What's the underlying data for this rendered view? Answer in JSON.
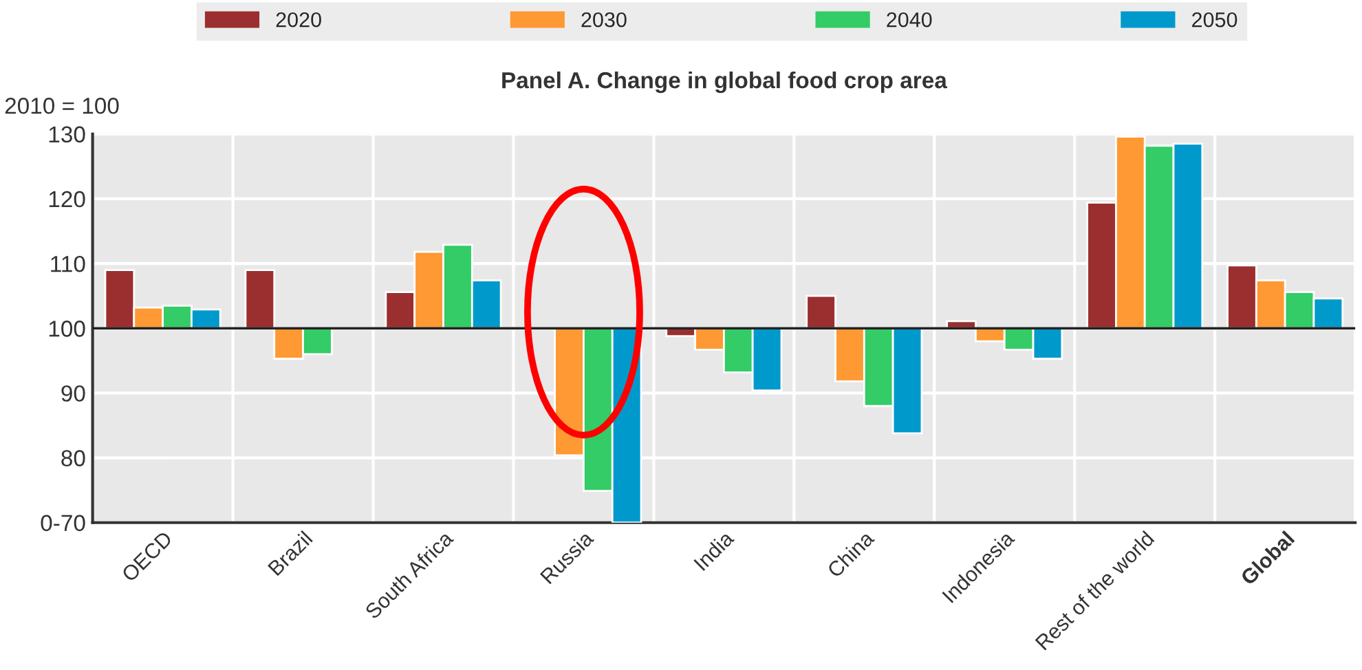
{
  "chart_data": {
    "type": "bar",
    "title": "Panel A. Change in global food crop area",
    "ylabel": "2010 = 100",
    "categories": [
      "OECD",
      "Brazil",
      "South Africa",
      "Russia",
      "India",
      "China",
      "Indonesia",
      "Rest of the world",
      "Global"
    ],
    "series": [
      {
        "name": "2020",
        "color": "#9b2f2f",
        "base": [
          100,
          100,
          100,
          null,
          100,
          100,
          100,
          100,
          100
        ],
        "values": [
          9.0,
          9.0,
          5.6,
          null,
          -1.2,
          5.0,
          1.1,
          19.4,
          9.7
        ]
      },
      {
        "name": "2030",
        "color": "#ff9933",
        "base": [
          100,
          100,
          100,
          100,
          100,
          100,
          100,
          100,
          100
        ],
        "values": [
          3.2,
          -4.7,
          11.8,
          -19.6,
          -3.3,
          -8.2,
          -2.0,
          29.6,
          7.4
        ]
      },
      {
        "name": "2040",
        "color": "#33cc66",
        "base": [
          100,
          100,
          100,
          100,
          100,
          100,
          100,
          100,
          100
        ],
        "values": [
          3.5,
          -4.0,
          12.9,
          -25.1,
          -6.8,
          -12.0,
          -3.3,
          28.2,
          5.6
        ]
      },
      {
        "name": "2050",
        "color": "#0099cc",
        "base": [
          100,
          null,
          100,
          100,
          100,
          100,
          100,
          100,
          100
        ],
        "values": [
          2.9,
          null,
          7.4,
          -30.0,
          -9.6,
          -16.2,
          -4.7,
          28.5,
          4.6
        ]
      }
    ],
    "ylim": [
      70,
      130
    ],
    "yticks": [
      {
        "value": 70,
        "label": "0-70"
      },
      80,
      90,
      100,
      110,
      120,
      130
    ],
    "ref_lines": [
      {
        "axis": "y",
        "value": 100,
        "color": "#222222"
      }
    ],
    "grid": true,
    "legend": "top"
  }
}
